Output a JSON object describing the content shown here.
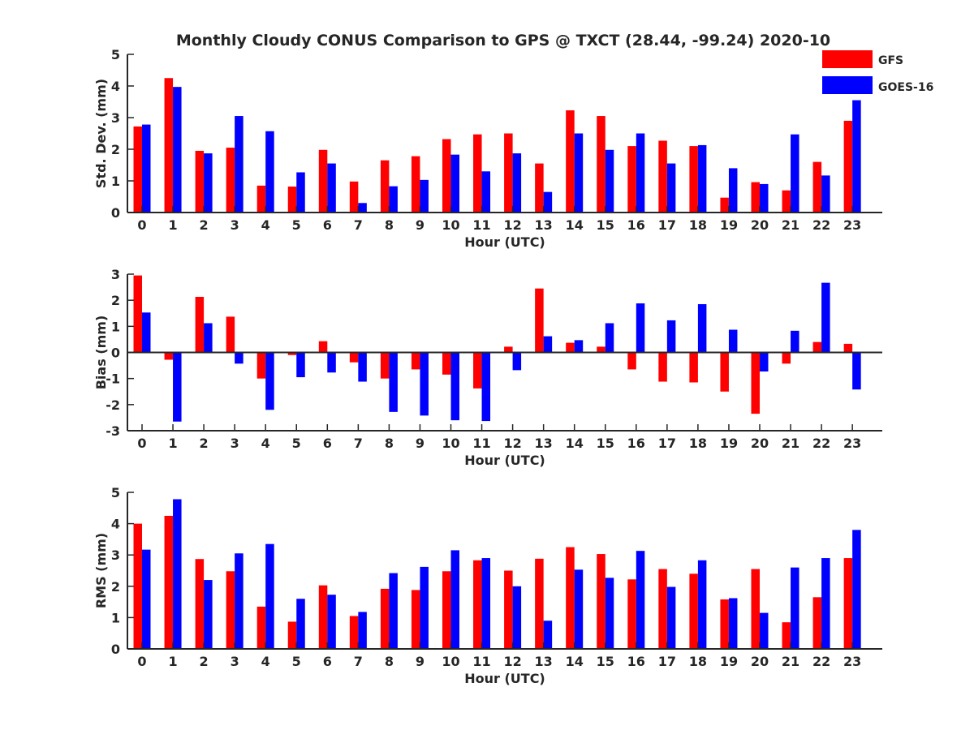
{
  "title": "Monthly Cloudy CONUS Comparison to GPS @ TXCT (28.44, -99.24) 2020-10",
  "legend": {
    "placement": "top-right",
    "entries": [
      "GFS",
      "GOES-16"
    ]
  },
  "colors": {
    "GFS": "#ff0000",
    "GOES-16": "#0000ff",
    "axis": "#262626"
  },
  "chart_data": [
    {
      "type": "bar",
      "title": "Monthly Cloudy CONUS Comparison to GPS @ TXCT (28.44, -99.24) 2020-10",
      "xlabel": "Hour (UTC)",
      "ylabel": "Std. Dev. (mm)",
      "ylim": [
        0,
        5
      ],
      "yticks": [
        0,
        1,
        2,
        3,
        4,
        5
      ],
      "categories": [
        "0",
        "1",
        "2",
        "3",
        "4",
        "5",
        "6",
        "7",
        "8",
        "9",
        "10",
        "11",
        "12",
        "13",
        "14",
        "15",
        "16",
        "17",
        "18",
        "19",
        "20",
        "21",
        "22",
        "23"
      ],
      "series": [
        {
          "name": "GFS",
          "values": [
            2.72,
            4.25,
            1.95,
            2.05,
            0.85,
            0.82,
            1.98,
            0.98,
            1.65,
            1.78,
            2.32,
            2.47,
            2.5,
            1.55,
            3.23,
            3.05,
            2.1,
            2.27,
            2.1,
            0.47,
            0.96,
            0.7,
            1.6,
            2.9
          ]
        },
        {
          "name": "GOES-16",
          "values": [
            2.78,
            3.97,
            1.87,
            3.05,
            2.57,
            1.27,
            1.55,
            0.3,
            0.83,
            1.03,
            1.83,
            1.3,
            1.87,
            0.65,
            2.5,
            1.98,
            2.5,
            1.55,
            2.13,
            1.4,
            0.9,
            2.47,
            1.17,
            3.55
          ]
        }
      ]
    },
    {
      "type": "bar",
      "xlabel": "Hour (UTC)",
      "ylabel": "Bias (mm)",
      "ylim": [
        -3,
        3
      ],
      "yticks": [
        -3,
        -2,
        -1,
        0,
        1,
        2,
        3
      ],
      "categories": [
        "0",
        "1",
        "2",
        "3",
        "4",
        "5",
        "6",
        "7",
        "8",
        "9",
        "10",
        "11",
        "12",
        "13",
        "14",
        "15",
        "16",
        "17",
        "18",
        "19",
        "20",
        "21",
        "22",
        "23"
      ],
      "series": [
        {
          "name": "GFS",
          "values": [
            2.95,
            -0.28,
            2.13,
            1.37,
            -1.0,
            -0.1,
            0.43,
            -0.38,
            -1.0,
            -0.65,
            -0.85,
            -1.38,
            0.22,
            2.45,
            0.37,
            0.22,
            -0.65,
            -1.12,
            -1.15,
            -1.5,
            -2.35,
            -0.43,
            0.4,
            0.33
          ]
        },
        {
          "name": "GOES-16",
          "values": [
            1.53,
            -2.65,
            1.12,
            -0.43,
            -2.2,
            -0.95,
            -0.77,
            -1.12,
            -2.28,
            -2.42,
            -2.6,
            -2.63,
            -0.68,
            0.62,
            0.47,
            1.12,
            1.88,
            1.23,
            1.85,
            0.87,
            -0.73,
            0.83,
            2.67,
            -1.42
          ]
        }
      ]
    },
    {
      "type": "bar",
      "xlabel": "Hour (UTC)",
      "ylabel": "RMS (mm)",
      "ylim": [
        0,
        5
      ],
      "yticks": [
        0,
        1,
        2,
        3,
        4,
        5
      ],
      "categories": [
        "0",
        "1",
        "2",
        "3",
        "4",
        "5",
        "6",
        "7",
        "8",
        "9",
        "10",
        "11",
        "12",
        "13",
        "14",
        "15",
        "16",
        "17",
        "18",
        "19",
        "20",
        "21",
        "22",
        "23"
      ],
      "series": [
        {
          "name": "GFS",
          "values": [
            4.0,
            4.25,
            2.87,
            2.48,
            1.35,
            0.87,
            2.03,
            1.05,
            1.92,
            1.88,
            2.48,
            2.83,
            2.5,
            2.88,
            3.25,
            3.03,
            2.22,
            2.55,
            2.4,
            1.58,
            2.55,
            0.85,
            1.65,
            2.9
          ]
        },
        {
          "name": "GOES-16",
          "values": [
            3.17,
            4.78,
            2.2,
            3.05,
            3.35,
            1.6,
            1.73,
            1.18,
            2.42,
            2.62,
            3.15,
            2.9,
            2.0,
            0.9,
            2.53,
            2.27,
            3.13,
            1.98,
            2.83,
            1.62,
            1.15,
            2.6,
            2.9,
            3.8
          ]
        }
      ]
    }
  ]
}
